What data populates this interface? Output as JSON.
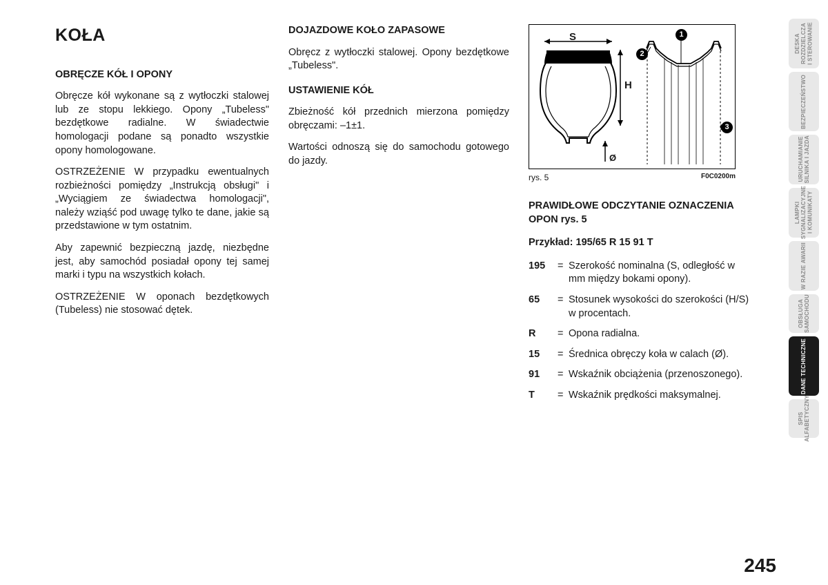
{
  "page_number": "245",
  "col1": {
    "title": "KOŁA",
    "h1": "OBRĘCZE KÓŁ I OPONY",
    "p1": "Obręcze kół wykonane są z wytłoczki stalowej lub ze stopu lekkiego. Opony „Tubeless\" bezdętkowe radialne. W świadectwie homologacji podane są ponadto wszystkie opony homologowane.",
    "p2": "OSTRZEŻENIE W przypadku ewentualnych rozbieżności pomiędzy „Instrukcją obsługi\" i „Wyciągiem ze świadectwa homologacji\", należy wziąść pod uwagę tylko te dane, jakie są przedstawione w tym ostatnim.",
    "p3": "Aby zapewnić bezpieczną jazdę, niezbędne jest, aby samochód posiadał opony tej samej marki i typu na wszystkich kołach.",
    "p4": "OSTRZEŻENIE W oponach bezdętkowych (Tubeless) nie stosować dętek."
  },
  "col2": {
    "h1": "DOJAZDOWE KOŁO ZAPASOWE",
    "p1": "Obręcz z wytłoczki stalowej. Opony bezdętkowe „Tubeless\".",
    "h2": "USTAWIENIE KÓŁ",
    "p2": "Zbieżność kół przednich mierzona pomiędzy obręczami: –1±1.",
    "p3": "Wartości odnoszą się do samochodu gotowego do jazdy."
  },
  "col3": {
    "fig_label": "rys. 5",
    "fig_code": "F0C0200m",
    "h1": "PRAWIDŁOWE ODCZYTANIE OZNACZENIA OPON rys. 5",
    "example_label": "Przykład: 195/65 R 15 91 T",
    "defs": [
      {
        "k": "195",
        "v": "Szerokość nominalna (S, odległość w mm między bokami opony)."
      },
      {
        "k": "65",
        "v": "Stosunek wysokości do szerokości (H/S) w procentach."
      },
      {
        "k": "R",
        "v": "Opona radialna."
      },
      {
        "k": "15",
        "v": "Średnica obręczy koła w calach (Ø)."
      },
      {
        "k": "91",
        "v": "Wskaźnik obciążenia (przenoszonego)."
      },
      {
        "k": "T",
        "v": "Wskaźnik prędkości maksymalnej."
      }
    ],
    "dim_S": "S",
    "dim_H": "H",
    "dim_O": "Ø",
    "callout1": "1",
    "callout2": "2",
    "callout3": "3"
  },
  "tabs": [
    {
      "label": "DESKA\nROZDZIELCZA\nI STEROWANIE",
      "active": false,
      "h": "h-72"
    },
    {
      "label": "BEZPIECZEŃSTWO",
      "active": false,
      "h": "h-86"
    },
    {
      "label": "URUCHAMIANIE\nSILNIKA I JAZDA",
      "active": false,
      "h": "h-72"
    },
    {
      "label": "LAMPKI\nSYGNALIZACYJNE\nI KOMUNIKATY",
      "active": false,
      "h": "h-72"
    },
    {
      "label": "W RAZIE AWARII",
      "active": false,
      "h": "h-72"
    },
    {
      "label": "OBSŁUGA\nSAMOCHODU",
      "active": false,
      "h": "h-56"
    },
    {
      "label": "DANE TECHNICZNE",
      "active": true,
      "h": "h-86"
    },
    {
      "label": "SPIS\nALFABETYCZNY",
      "active": false,
      "h": "h-56"
    }
  ]
}
